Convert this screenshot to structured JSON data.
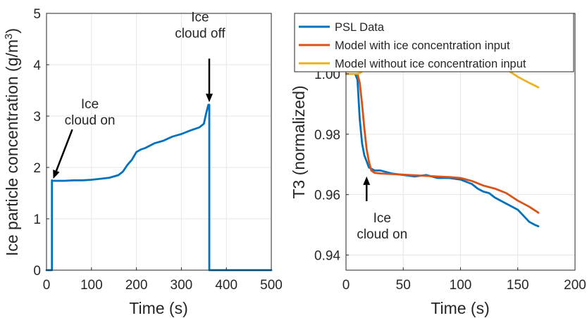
{
  "chart_data": [
    {
      "type": "line",
      "xlabel": "Time (s)",
      "ylabel": "Ice particle concentration (g/m",
      "ylabel_sup": "3",
      "ylabel_close": ")",
      "xlim": [
        0,
        500
      ],
      "ylim": [
        0,
        5
      ],
      "xticks": [
        0,
        100,
        200,
        300,
        400,
        500
      ],
      "yticks": [
        0,
        1,
        2,
        3,
        4,
        5
      ],
      "grid": true,
      "series": [
        {
          "color": "#0072BD",
          "x": [
            0,
            12,
            12,
            14,
            20,
            40,
            60,
            80,
            100,
            120,
            140,
            160,
            170,
            180,
            190,
            200,
            210,
            220,
            240,
            260,
            280,
            300,
            320,
            340,
            350,
            355,
            360,
            362,
            362,
            400,
            500
          ],
          "y": [
            0,
            0,
            1.75,
            1.74,
            1.74,
            1.74,
            1.75,
            1.75,
            1.76,
            1.78,
            1.8,
            1.85,
            1.92,
            2.05,
            2.15,
            2.3,
            2.35,
            2.38,
            2.47,
            2.52,
            2.6,
            2.65,
            2.72,
            2.78,
            2.85,
            3.05,
            3.22,
            3.22,
            0,
            0,
            0
          ]
        }
      ],
      "annotations": [
        {
          "line1": "Ice",
          "line2": "cloud on",
          "x": 15,
          "y": 1.78
        },
        {
          "line1": "Ice",
          "line2": "cloud off",
          "x": 362,
          "y": 3.27
        }
      ]
    },
    {
      "type": "line",
      "xlabel": "Time (s)",
      "ylabel": "T3 (normalized)",
      "xlim": [
        0,
        200
      ],
      "ylim": [
        0.935,
        1.02
      ],
      "xticks": [
        0,
        50,
        100,
        150,
        200
      ],
      "yticks": [
        0.94,
        0.96,
        0.98,
        1.0
      ],
      "ytick_labels": [
        "0.94",
        "0.96",
        "0.98",
        "1.00"
      ],
      "grid": true,
      "legend_position": "top-right",
      "series": [
        {
          "name": "PSL Data",
          "color": "#0072BD",
          "x": [
            0,
            5,
            8,
            10,
            12,
            14,
            16,
            18,
            20,
            25,
            30,
            40,
            50,
            60,
            70,
            75,
            80,
            90,
            100,
            110,
            115,
            120,
            125,
            130,
            140,
            150,
            155,
            160,
            165,
            168
          ],
          "y": [
            1.0,
            1.0,
            1.0,
            0.998,
            0.985,
            0.977,
            0.973,
            0.971,
            0.969,
            0.968,
            0.968,
            0.967,
            0.9665,
            0.966,
            0.9665,
            0.966,
            0.9655,
            0.9655,
            0.965,
            0.9635,
            0.962,
            0.961,
            0.9605,
            0.959,
            0.957,
            0.955,
            0.953,
            0.951,
            0.95,
            0.9495
          ]
        },
        {
          "name": "Model with ice concentration input",
          "color": "#D95319",
          "x": [
            0,
            10,
            12,
            14,
            16,
            18,
            20,
            22,
            25,
            30,
            40,
            50,
            60,
            70,
            80,
            90,
            100,
            110,
            120,
            130,
            140,
            150,
            160,
            168
          ],
          "y": [
            1.0,
            1.0,
            0.997,
            0.99,
            0.982,
            0.975,
            0.971,
            0.968,
            0.9672,
            0.967,
            0.9668,
            0.9666,
            0.9664,
            0.9662,
            0.966,
            0.9658,
            0.9655,
            0.9645,
            0.963,
            0.962,
            0.9605,
            0.958,
            0.956,
            0.954
          ]
        },
        {
          "name": "Model without ice concentration input",
          "color": "#EDB120",
          "x": [
            0,
            10,
            12,
            15,
            20,
            25,
            30,
            35,
            40,
            50,
            60,
            70,
            80,
            90,
            100,
            110,
            120,
            130,
            140,
            150,
            160,
            168
          ],
          "y": [
            1.0,
            1.0,
            1.0002,
            1.001,
            1.003,
            1.005,
            1.006,
            1.0067,
            1.0068,
            1.0065,
            1.006,
            1.0058,
            1.0055,
            1.0058,
            1.0055,
            1.005,
            1.004,
            1.003,
            1.0015,
            0.999,
            0.997,
            0.9955
          ]
        }
      ],
      "annotations": [
        {
          "line1": "Ice",
          "line2": "cloud on",
          "x": 18,
          "y": 0.966
        }
      ]
    }
  ]
}
